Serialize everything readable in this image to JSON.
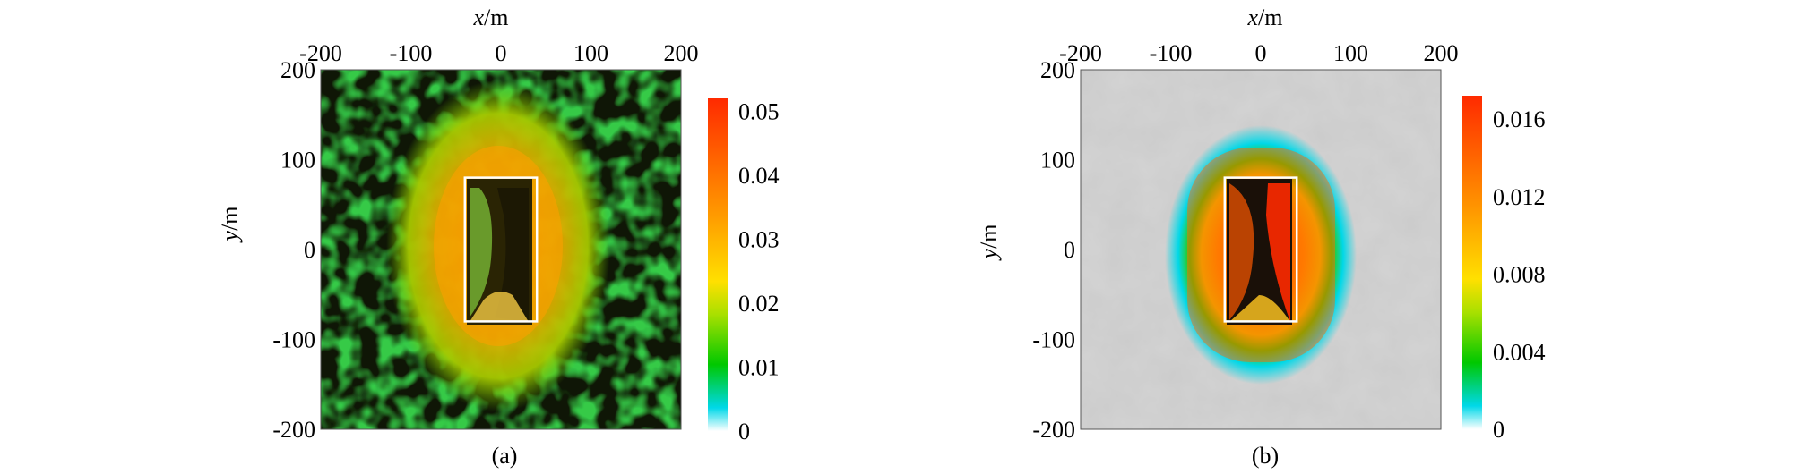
{
  "chart_data": [
    {
      "type": "heatmap",
      "panel_label": "(a)",
      "xlabel_var": "x",
      "xlabel_unit": "/m",
      "ylabel_var": "y",
      "ylabel_unit": "/m",
      "xlim": [
        -200,
        200
      ],
      "ylim": [
        -200,
        200
      ],
      "xticks": [
        "-200",
        "-100",
        "0",
        "100",
        "200"
      ],
      "yticks": [
        "200",
        "100",
        "0",
        "-100",
        "-200"
      ],
      "colorbar": {
        "range": [
          0,
          0.052
        ],
        "ticks": [
          {
            "value": 0,
            "label": "0"
          },
          {
            "value": 0.01,
            "label": "0.01"
          },
          {
            "value": 0.02,
            "label": "0.02"
          },
          {
            "value": 0.03,
            "label": "0.03"
          },
          {
            "value": 0.04,
            "label": "0.04"
          },
          {
            "value": 0.05,
            "label": "0.05"
          }
        ]
      },
      "target_rectangle": {
        "x": [
          -40,
          40
        ],
        "y": [
          -80,
          80
        ]
      },
      "background": "noisy speckle",
      "colors": [
        "#ffffff",
        "#00d8e8",
        "#00c800",
        "#a8e000",
        "#ffe000",
        "#ff9a00",
        "#ff2a00"
      ]
    },
    {
      "type": "heatmap",
      "panel_label": "(b)",
      "xlabel_var": "x",
      "xlabel_unit": "/m",
      "ylabel_var": "y",
      "ylabel_unit": "/m",
      "xlim": [
        -200,
        200
      ],
      "ylim": [
        -200,
        200
      ],
      "xticks": [
        "-200",
        "-100",
        "0",
        "100",
        "200"
      ],
      "yticks": [
        "200",
        "100",
        "0",
        "-100",
        "-200"
      ],
      "colorbar": {
        "range": [
          0,
          0.0172
        ],
        "ticks": [
          {
            "value": 0,
            "label": "0"
          },
          {
            "value": 0.004,
            "label": "0.004"
          },
          {
            "value": 0.008,
            "label": "0.008"
          },
          {
            "value": 0.012,
            "label": "0.012"
          },
          {
            "value": 0.016,
            "label": "0.016"
          }
        ]
      },
      "target_rectangle": {
        "x": [
          -40,
          40
        ],
        "y": [
          -80,
          80
        ]
      },
      "background": "gray",
      "colors": [
        "#ffffff",
        "#00d8e8",
        "#00c800",
        "#a8e000",
        "#ffe000",
        "#ff9a00",
        "#ff2a00"
      ]
    }
  ]
}
